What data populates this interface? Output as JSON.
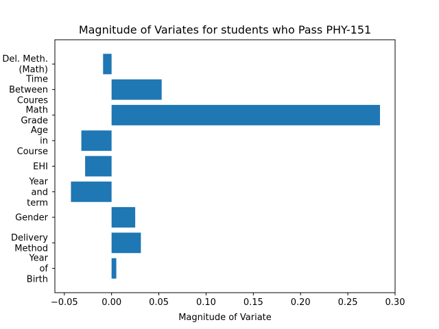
{
  "chart_data": {
    "type": "bar",
    "orientation": "horizontal",
    "title": "Magnitude of Variates for students who Pass PHY-151",
    "xlabel": "Magnitude of Variate",
    "ylabel": "",
    "xlim": [
      -0.06,
      0.3
    ],
    "xticks": [
      -0.05,
      0.0,
      0.05,
      0.1,
      0.15,
      0.2,
      0.25,
      0.3
    ],
    "xtick_labels": [
      "−0.05",
      "0.00",
      "0.05",
      "0.10",
      "0.15",
      "0.20",
      "0.25",
      "0.30"
    ],
    "categories": [
      "Year of Birth",
      "Delivery Method",
      "Gender",
      "Year and term",
      "EHI",
      "Age in Course",
      "Math Grade",
      "Time Between Coures",
      "Del. Meth. (Math)"
    ],
    "category_label_lines": [
      [
        "Year",
        "of",
        "Birth"
      ],
      [
        "Delivery",
        "Method"
      ],
      [
        "Gender"
      ],
      [
        "Year",
        "and",
        "term"
      ],
      [
        "EHI"
      ],
      [
        "Age",
        "in",
        "Course"
      ],
      [
        "Math",
        "Grade"
      ],
      [
        "Time",
        "Between",
        "Coures"
      ],
      [
        "Del. Meth.",
        "(Math)"
      ]
    ],
    "values": [
      0.005,
      0.031,
      0.025,
      -0.043,
      -0.028,
      -0.032,
      0.284,
      0.053,
      -0.009
    ],
    "bar_color": "#1f77b4",
    "grid": false,
    "legend": "none"
  }
}
